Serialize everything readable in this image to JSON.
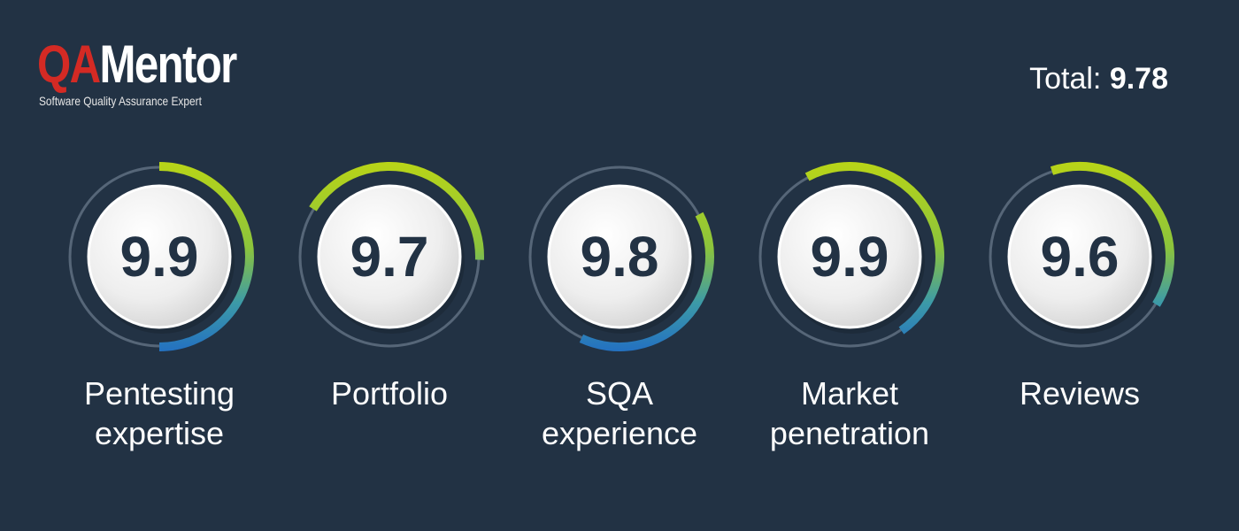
{
  "logo": {
    "mark": "QA",
    "name": "Mentor",
    "tagline": "Software Quality Assurance Expert"
  },
  "total": {
    "label": "Total:",
    "value": 9.78
  },
  "scores": [
    {
      "value": 9.9,
      "label": "Pentesting expertise"
    },
    {
      "value": 9.7,
      "label": "Portfolio"
    },
    {
      "value": 9.8,
      "label": "SQA experience"
    },
    {
      "value": 9.9,
      "label": "Market penetration"
    },
    {
      "value": 9.6,
      "label": "Reviews"
    }
  ]
}
